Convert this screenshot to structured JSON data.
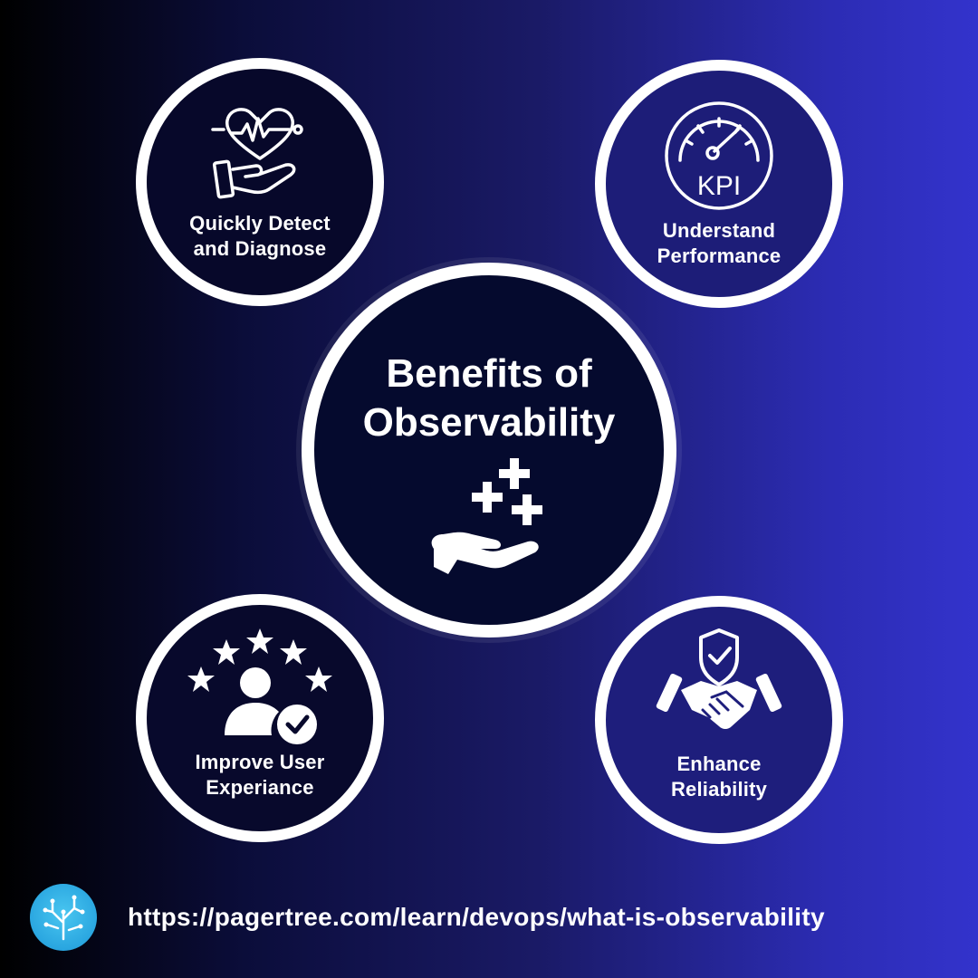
{
  "center": {
    "title": "Benefits of\nObservability",
    "icon": "hand-plus-icon"
  },
  "benefits": [
    {
      "label": "Quickly Detect\nand Diagnose",
      "icon": "heart-hand-icon"
    },
    {
      "label": "Understand\nPerformance",
      "icon": "kpi-gauge-icon",
      "icon_text": "KPI"
    },
    {
      "label": "Improve User\nExperiance",
      "icon": "user-stars-check-icon"
    },
    {
      "label": "Enhance\nReliability",
      "icon": "handshake-shield-icon"
    }
  ],
  "footer": {
    "url": "https://pagertree.com/learn/devops/what-is-observability",
    "logo": "pagertree-logo-icon"
  },
  "colors": {
    "accent_logo": "#2aa6e0",
    "circle_border": "#ffffff",
    "gradient_end": "#3333cc"
  }
}
